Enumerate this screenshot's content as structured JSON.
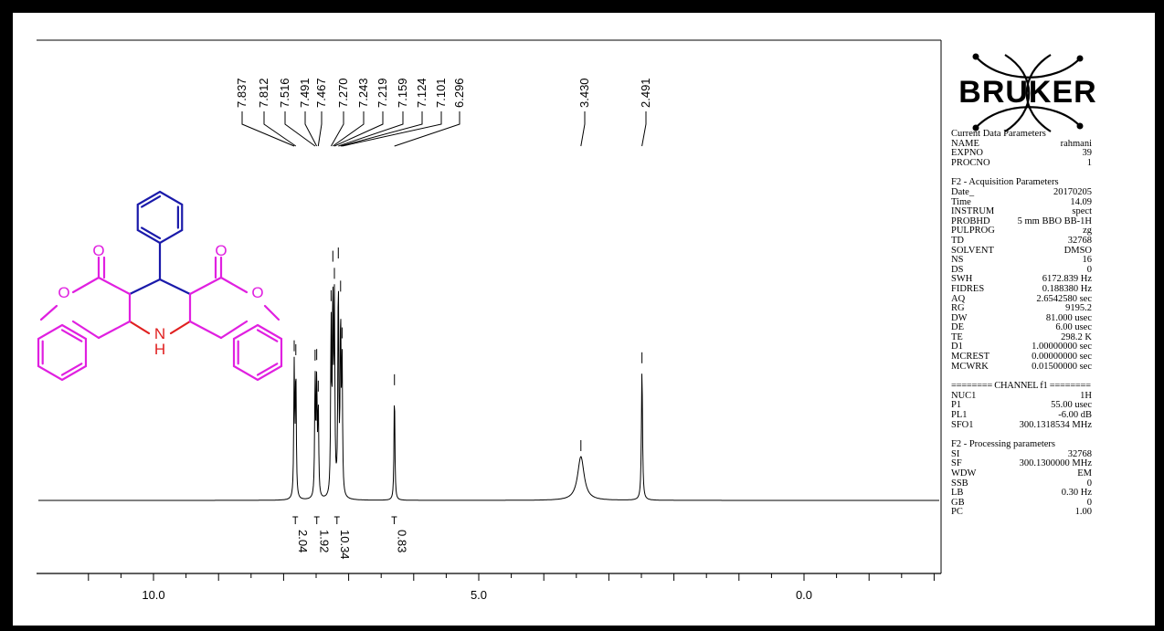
{
  "chart_data": {
    "type": "line",
    "title": "",
    "xlabel": "",
    "ylabel": "",
    "x_axis": {
      "min": 11.0,
      "max": -2.0,
      "reversed": true,
      "major_ticks": [
        10.0,
        5.0,
        0.0
      ],
      "tick_labels": [
        "10.0",
        "5.0",
        "0.0"
      ],
      "minor_step": 1.0
    },
    "peak_labels": [
      "7.837",
      "7.812",
      "7.516",
      "7.491",
      "7.467",
      "7.270",
      "7.243",
      "7.219",
      "7.159",
      "7.124",
      "7.101",
      "6.296",
      "3.430",
      "2.491"
    ],
    "peaks": [
      {
        "ppm": 7.837,
        "h": 0.6
      },
      {
        "ppm": 7.812,
        "h": 0.58
      },
      {
        "ppm": 7.516,
        "h": 0.55
      },
      {
        "ppm": 7.491,
        "h": 0.52
      },
      {
        "ppm": 7.467,
        "h": 0.4
      },
      {
        "ppm": 7.27,
        "h": 0.78
      },
      {
        "ppm": 7.243,
        "h": 0.9
      },
      {
        "ppm": 7.219,
        "h": 0.85
      },
      {
        "ppm": 7.159,
        "h": 1.0
      },
      {
        "ppm": 7.124,
        "h": 0.8
      },
      {
        "ppm": 7.101,
        "h": 0.6
      },
      {
        "ppm": 6.296,
        "h": 0.5
      },
      {
        "ppm": 3.43,
        "h": 0.2
      },
      {
        "ppm": 2.491,
        "h": 0.6
      }
    ],
    "integrals": [
      {
        "ppm": 7.82,
        "value": "2.04"
      },
      {
        "ppm": 7.49,
        "value": "1.92"
      },
      {
        "ppm": 7.18,
        "value": "10.34"
      },
      {
        "ppm": 6.3,
        "value": "0.83"
      }
    ],
    "colors": {
      "trace": "#000000",
      "frame": "#000000"
    }
  },
  "structure": {
    "labels": {
      "o_carbonyl_left": "O",
      "o_carbonyl_right": "O",
      "o_ring_left": "O",
      "o_ring_right": "O",
      "n": "N",
      "h": "H"
    },
    "colors": {
      "phenyl": "#1a1aaa",
      "coumarin": "#e020e0",
      "amine": "#e02020"
    }
  },
  "logo": {
    "text": "BRUKER"
  },
  "params": {
    "current": {
      "title": "Current Data Parameters",
      "rows": [
        [
          "NAME",
          "rahmani"
        ],
        [
          "EXPNO",
          "39"
        ],
        [
          "PROCNO",
          "1"
        ]
      ]
    },
    "acq": {
      "title": "F2 - Acquisition Parameters",
      "rows": [
        [
          "Date_",
          "20170205"
        ],
        [
          "Time",
          "14.09"
        ],
        [
          "INSTRUM",
          "spect"
        ],
        [
          "PROBHD",
          "5 mm BBO BB-1H"
        ],
        [
          "PULPROG",
          "zg"
        ],
        [
          "TD",
          "32768"
        ],
        [
          "SOLVENT",
          "DMSO"
        ],
        [
          "NS",
          "16"
        ],
        [
          "DS",
          "0"
        ],
        [
          "SWH",
          "6172.839 Hz"
        ],
        [
          "FIDRES",
          "0.188380 Hz"
        ],
        [
          "AQ",
          "2.6542580 sec"
        ],
        [
          "RG",
          "9195.2"
        ],
        [
          "DW",
          "81.000 usec"
        ],
        [
          "DE",
          "6.00 usec"
        ],
        [
          "TE",
          "298.2 K"
        ],
        [
          "D1",
          "1.00000000 sec"
        ],
        [
          "MCREST",
          "0.00000000 sec"
        ],
        [
          "MCWRK",
          "0.01500000 sec"
        ]
      ]
    },
    "channel": {
      "title": "======== CHANNEL f1 ========",
      "rows": [
        [
          "NUC1",
          "1H"
        ],
        [
          "P1",
          "55.00 usec"
        ],
        [
          "PL1",
          "-6.00 dB"
        ],
        [
          "SFO1",
          "300.1318534 MHz"
        ]
      ]
    },
    "proc": {
      "title": "F2 - Processing parameters",
      "rows": [
        [
          "SI",
          "32768"
        ],
        [
          "SF",
          "300.1300000 MHz"
        ],
        [
          "WDW",
          "EM"
        ],
        [
          "SSB",
          "0"
        ],
        [
          "LB",
          "0.30 Hz"
        ],
        [
          "GB",
          "0"
        ],
        [
          "PC",
          "1.00"
        ]
      ]
    }
  }
}
